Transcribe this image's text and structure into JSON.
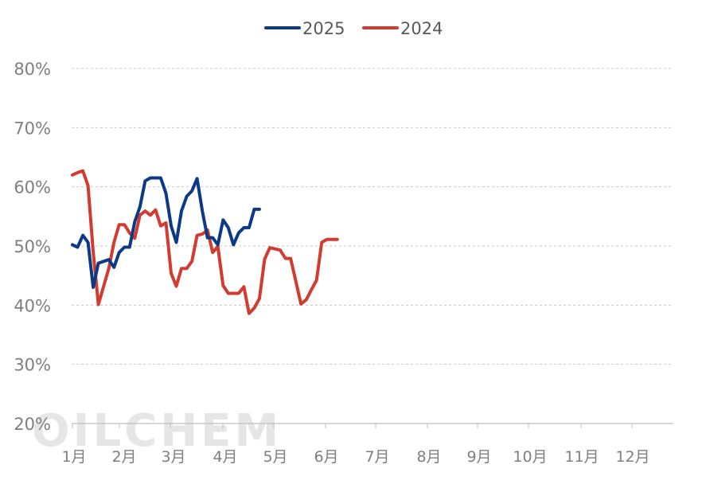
{
  "watermark": "OILCHEM",
  "chart_data": {
    "type": "line",
    "title": "",
    "xlabel": "",
    "ylabel": "",
    "ylim": [
      20,
      80
    ],
    "yticks": [
      "20%",
      "30%",
      "40%",
      "50%",
      "60%",
      "70%",
      "80%"
    ],
    "ytick_values": [
      20,
      30,
      40,
      50,
      60,
      70,
      80
    ],
    "categories": [
      "1月",
      "2月",
      "3月",
      "4月",
      "5月",
      "6月",
      "7月",
      "8月",
      "9月",
      "10月",
      "11月",
      "12月"
    ],
    "grid": true,
    "legend": "top-center",
    "series": [
      {
        "name": "2025",
        "color": "#0d3a86",
        "points": [
          [
            0.0,
            50.2
          ],
          [
            0.26,
            49.8
          ],
          [
            0.52,
            51.8
          ],
          [
            0.78,
            50.6
          ],
          [
            1.04,
            43.0
          ],
          [
            1.3,
            47.1
          ],
          [
            1.56,
            47.4
          ],
          [
            1.82,
            47.7
          ],
          [
            2.08,
            46.4
          ],
          [
            2.34,
            48.9
          ],
          [
            2.6,
            49.8
          ],
          [
            2.86,
            49.8
          ],
          [
            3.12,
            54.1
          ],
          [
            3.38,
            56.6
          ],
          [
            3.64,
            61.0
          ],
          [
            3.9,
            61.5
          ],
          [
            4.16,
            61.5
          ],
          [
            4.42,
            61.5
          ],
          [
            4.68,
            58.9
          ],
          [
            4.94,
            53.4
          ],
          [
            5.2,
            50.6
          ],
          [
            5.46,
            55.9
          ],
          [
            5.72,
            58.4
          ],
          [
            5.98,
            59.3
          ],
          [
            6.24,
            61.4
          ],
          [
            6.5,
            55.9
          ],
          [
            6.76,
            51.4
          ],
          [
            7.02,
            51.4
          ],
          [
            7.28,
            50.2
          ],
          [
            7.54,
            54.4
          ],
          [
            7.8,
            53.1
          ],
          [
            8.06,
            50.2
          ],
          [
            8.32,
            52.2
          ],
          [
            8.58,
            53.1
          ],
          [
            8.84,
            53.1
          ],
          [
            9.1,
            56.2
          ],
          [
            9.36,
            56.2
          ]
        ]
      },
      {
        "name": "2024",
        "color": "#d13b30",
        "points": [
          [
            0.0,
            62.0
          ],
          [
            0.26,
            62.4
          ],
          [
            0.52,
            62.7
          ],
          [
            0.78,
            60.2
          ],
          [
            1.04,
            49.0
          ],
          [
            1.3,
            40.1
          ],
          [
            1.56,
            43.2
          ],
          [
            1.82,
            46.2
          ],
          [
            2.08,
            50.6
          ],
          [
            2.34,
            53.6
          ],
          [
            2.6,
            53.6
          ],
          [
            2.86,
            52.2
          ],
          [
            3.12,
            51.3
          ],
          [
            3.38,
            55.2
          ],
          [
            3.64,
            55.9
          ],
          [
            3.9,
            55.2
          ],
          [
            4.16,
            56.1
          ],
          [
            4.42,
            53.4
          ],
          [
            4.68,
            53.9
          ],
          [
            4.94,
            45.4
          ],
          [
            5.2,
            43.2
          ],
          [
            5.46,
            46.2
          ],
          [
            5.72,
            46.2
          ],
          [
            5.98,
            47.4
          ],
          [
            6.24,
            51.8
          ],
          [
            6.5,
            52.0
          ],
          [
            6.76,
            52.7
          ],
          [
            7.02,
            48.9
          ],
          [
            7.28,
            49.9
          ],
          [
            7.54,
            43.3
          ],
          [
            7.8,
            42.0
          ],
          [
            8.06,
            42.0
          ],
          [
            8.32,
            42.0
          ],
          [
            8.58,
            43.1
          ],
          [
            8.84,
            38.6
          ],
          [
            9.1,
            39.5
          ],
          [
            9.36,
            41.1
          ],
          [
            9.62,
            47.8
          ],
          [
            9.88,
            49.7
          ],
          [
            10.14,
            49.5
          ],
          [
            10.4,
            49.3
          ],
          [
            10.66,
            47.9
          ],
          [
            10.92,
            47.9
          ],
          [
            11.18,
            44.1
          ],
          [
            11.44,
            40.2
          ],
          [
            11.7,
            40.9
          ],
          [
            11.96,
            42.6
          ],
          [
            12.22,
            44.2
          ],
          [
            12.48,
            50.6
          ],
          [
            12.74,
            51.1
          ],
          [
            13.0,
            51.1
          ],
          [
            13.26,
            51.1
          ]
        ]
      }
    ]
  }
}
